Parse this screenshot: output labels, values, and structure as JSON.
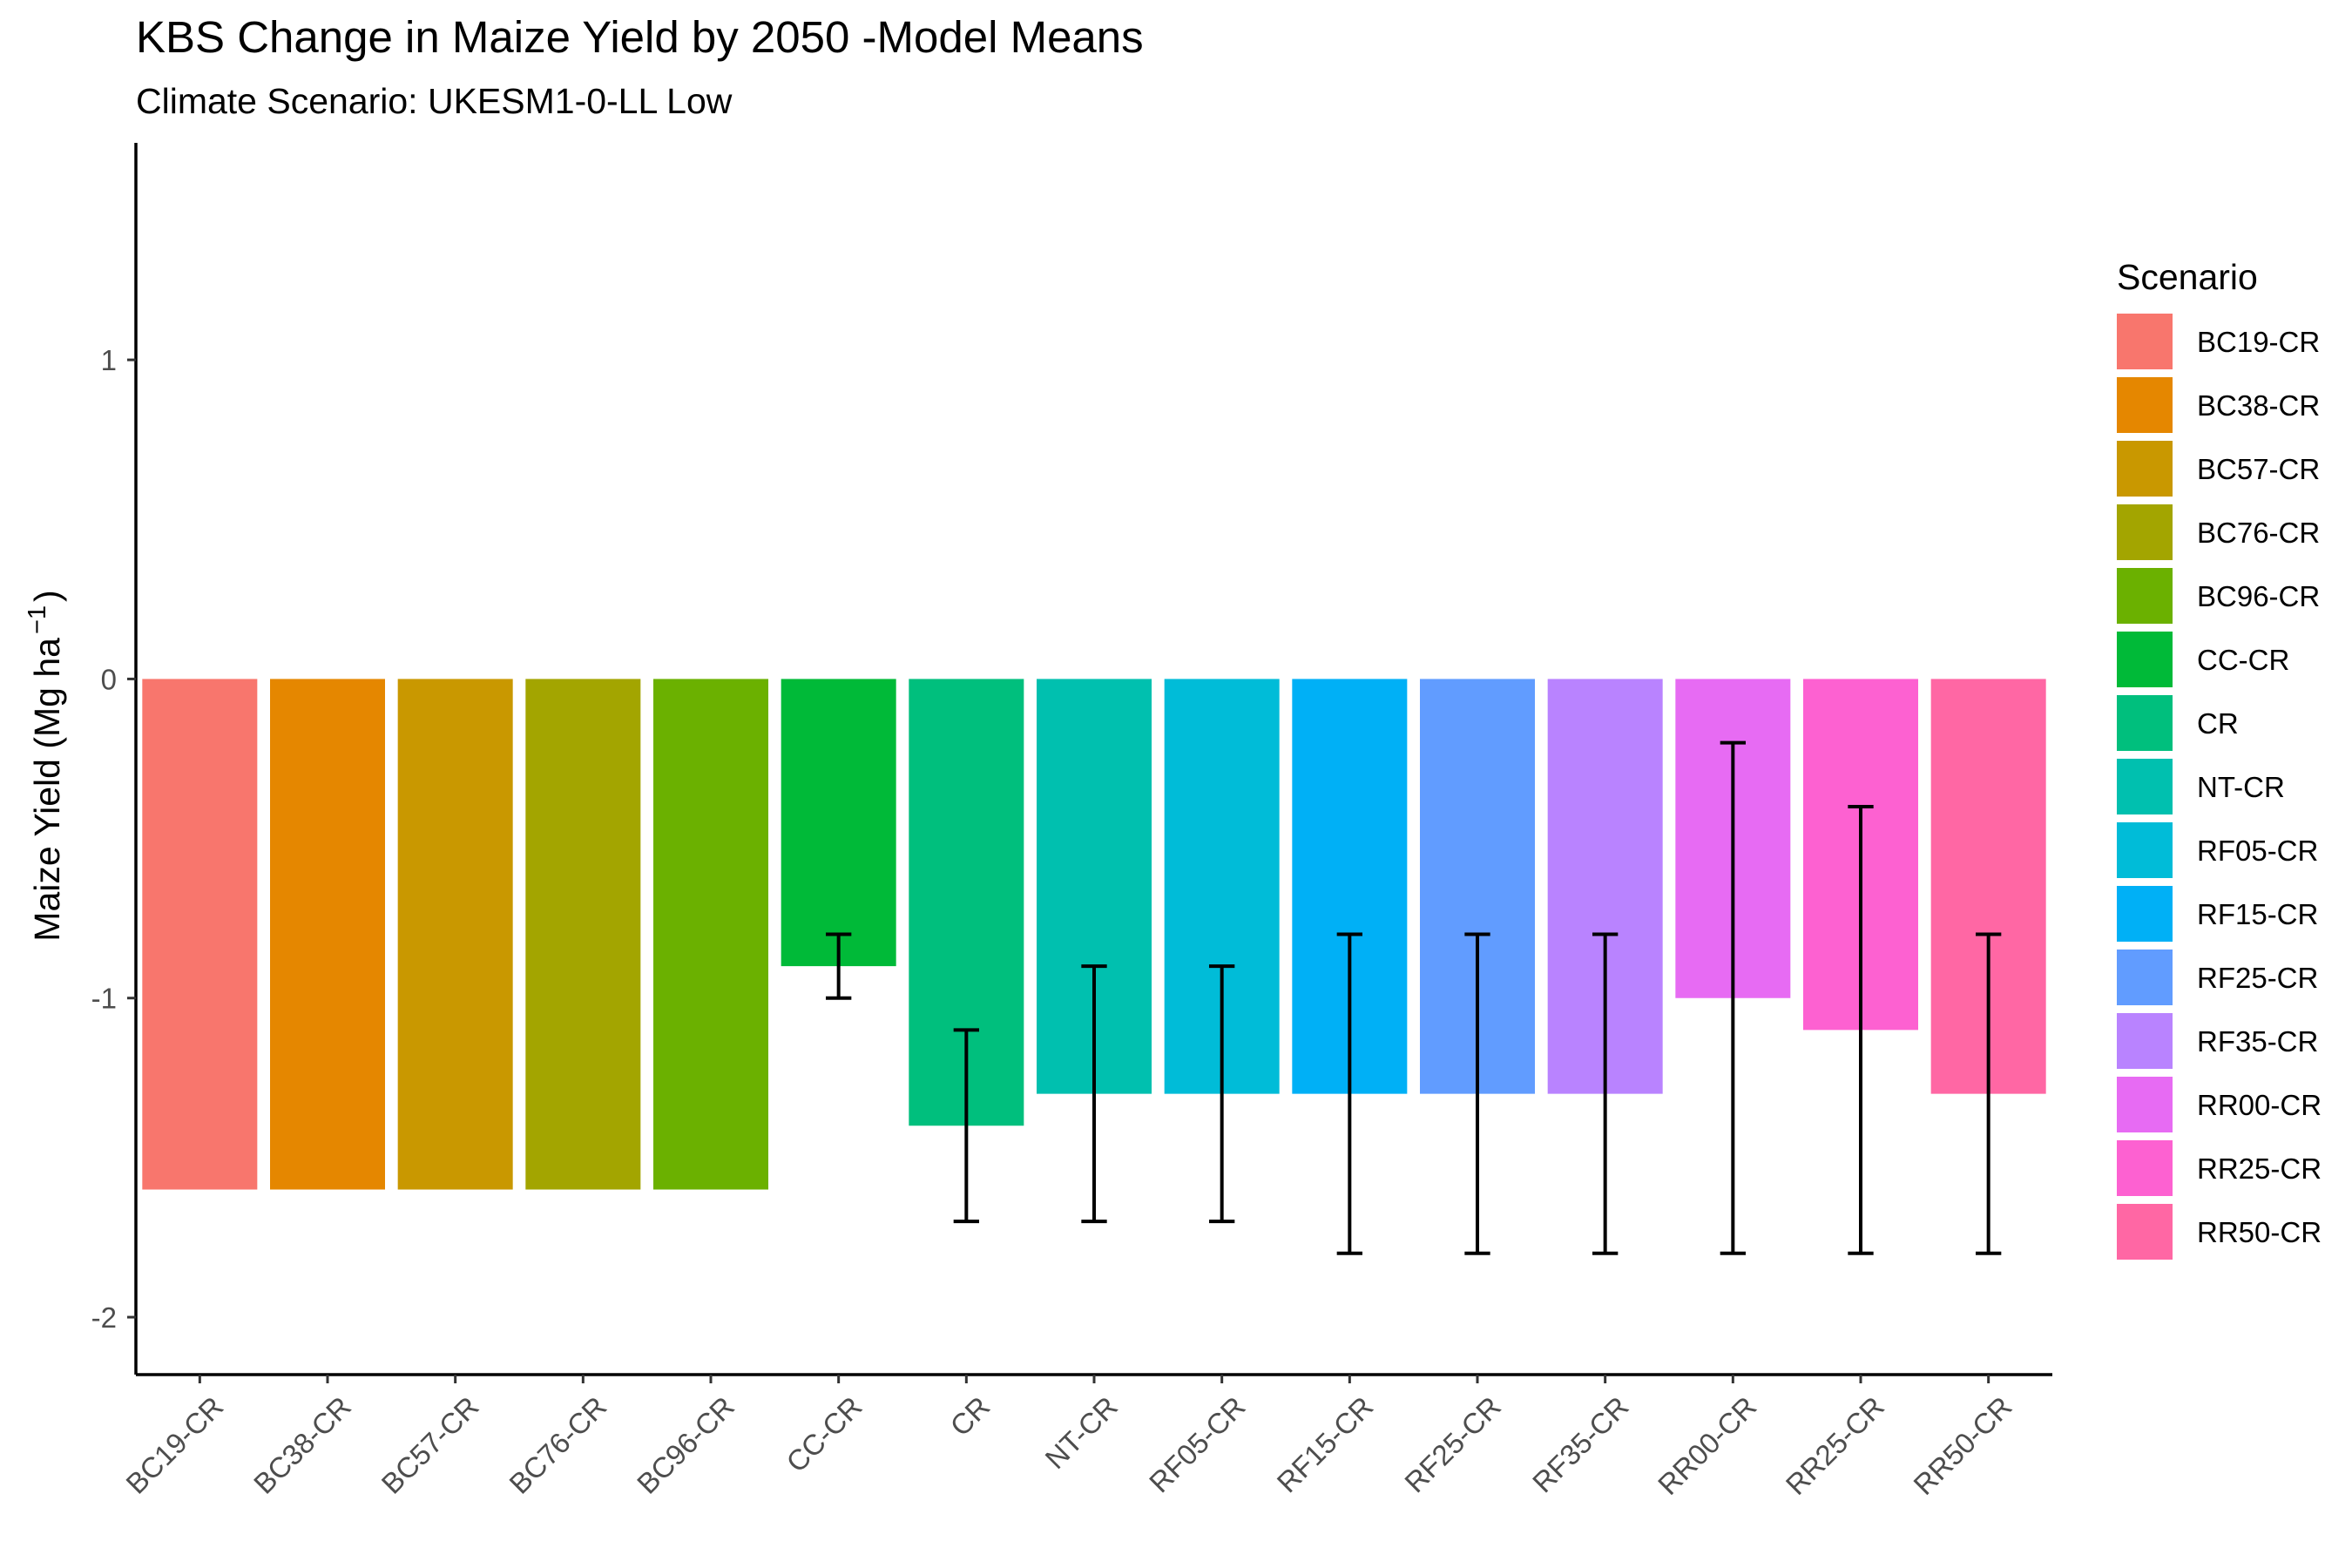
{
  "chart_data": {
    "type": "bar",
    "title": "KBS Change in Maize Yield by  2050 -Model Means",
    "subtitle": "Climate Scenario: UKESM1-0-LL Low",
    "xlabel": "",
    "ylabel": "Maize Yield (Mg ha",
    "ylabel_superscript": "−1",
    "ylabel_close": ")",
    "ylim": [
      -2.18,
      1.68
    ],
    "yticks": [
      1,
      0,
      -1,
      -2
    ],
    "ytick_labels": [
      "1",
      "0",
      "-1",
      "-2"
    ],
    "grid": false,
    "legend_title": "Scenario",
    "legend_position": "right",
    "categories": [
      "BC19-CR",
      "BC38-CR",
      "BC57-CR",
      "BC76-CR",
      "BC96-CR",
      "CC-CR",
      "CR",
      "NT-CR",
      "RF05-CR",
      "RF15-CR",
      "RF25-CR",
      "RF35-CR",
      "RR00-CR",
      "RR25-CR",
      "RR50-CR"
    ],
    "values": [
      -1.6,
      -1.6,
      -1.6,
      -1.6,
      -1.6,
      -0.9,
      -1.4,
      -1.3,
      -1.3,
      -1.3,
      -1.3,
      -1.3,
      -1.0,
      -1.1,
      -1.3
    ],
    "error_bars": [
      null,
      null,
      null,
      null,
      null,
      [
        -1.0,
        -0.8
      ],
      [
        -1.7,
        -1.1
      ],
      [
        -1.7,
        -0.9
      ],
      [
        -1.7,
        -0.9
      ],
      [
        -1.8,
        -0.8
      ],
      [
        -1.8,
        -0.8
      ],
      [
        -1.8,
        -0.8
      ],
      [
        -1.8,
        -0.2
      ],
      [
        -1.8,
        -0.4
      ],
      [
        -1.8,
        -0.8
      ]
    ],
    "colors": [
      "#F8766D",
      "#E58700",
      "#C99800",
      "#A3A500",
      "#6BB100",
      "#00BA38",
      "#00BF7D",
      "#00C0AF",
      "#00BCD8",
      "#00B0F6",
      "#619CFF",
      "#B983FF",
      "#E76BF3",
      "#FD61D1",
      "#FF67A4"
    ]
  }
}
